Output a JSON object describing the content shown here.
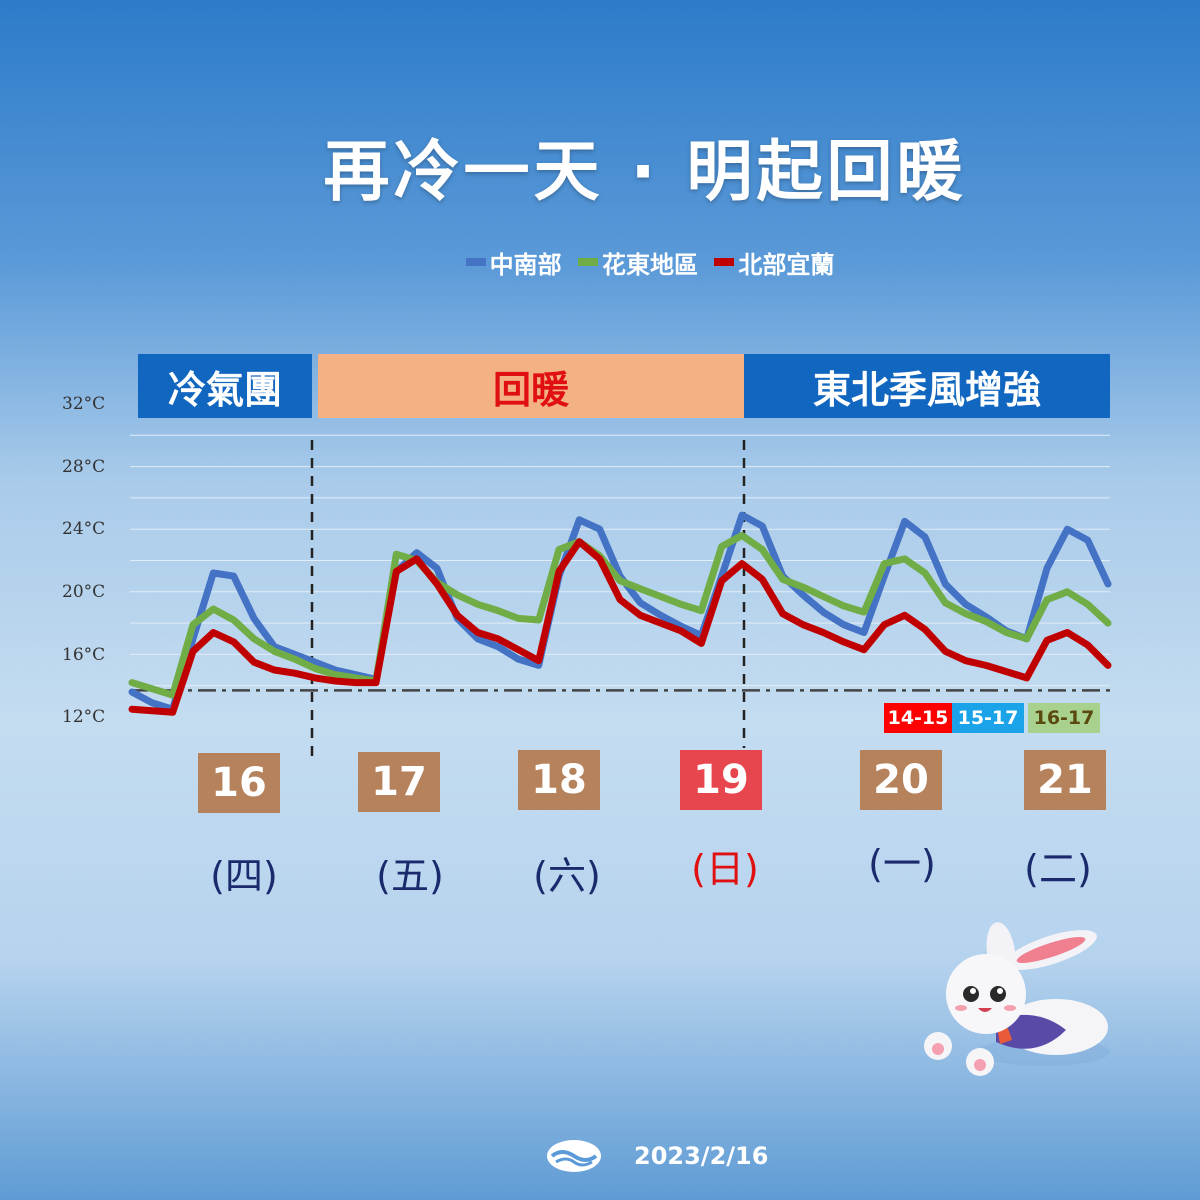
{
  "title": "再冷一天 · 明起回暖",
  "legend": [
    {
      "label": "中南部",
      "color": "#4472c4"
    },
    {
      "label": "花東地區",
      "color": "#70ad47"
    },
    {
      "label": "北部宜蘭",
      "color": "#c00000"
    }
  ],
  "banners": {
    "cold": "冷氣團",
    "warm": "回暖",
    "monsoon": "東北季風增強"
  },
  "days": [
    {
      "date": "16",
      "weekday": "(四)",
      "box_color": "#b5825c",
      "text_color": "#1a2a6c"
    },
    {
      "date": "17",
      "weekday": "(五)",
      "box_color": "#b5825c",
      "text_color": "#1a2a6c"
    },
    {
      "date": "18",
      "weekday": "(六)",
      "box_color": "#b5825c",
      "text_color": "#1a2a6c"
    },
    {
      "date": "19",
      "weekday": "(日)",
      "box_color": "#e8464f",
      "text_color": "#e01010"
    },
    {
      "date": "20",
      "weekday": "(一)",
      "box_color": "#b5825c",
      "text_color": "#1a2a6c"
    },
    {
      "date": "21",
      "weekday": "(二)",
      "box_color": "#b5825c",
      "text_color": "#1a2a6c"
    }
  ],
  "range_tags": [
    {
      "text": "14-15",
      "bg": "#ff0000",
      "color": "#ffffff"
    },
    {
      "text": "15-17",
      "bg": "#1aa3e8",
      "color": "#ffffff"
    },
    {
      "text": "16-17",
      "bg": "#a9d18e",
      "color": "#5a4a10"
    }
  ],
  "footer_date": "2023/2/16",
  "chart_data": {
    "type": "line",
    "yticks": [
      "12°C",
      "16°C",
      "20°C",
      "24°C",
      "28°C",
      "32°C"
    ],
    "ylim": [
      12,
      32
    ],
    "x": [
      0,
      0.25,
      0.5,
      0.75,
      1,
      1.25,
      1.5,
      1.75,
      2,
      2.25,
      2.5,
      2.75,
      3,
      3.25,
      3.5,
      3.75,
      4,
      4.25,
      4.5,
      4.75,
      5,
      5.25,
      5.5,
      5.75,
      6,
      6.25,
      6.5,
      6.75,
      7,
      7.25,
      7.5,
      7.75,
      8,
      8.25,
      8.5,
      8.75,
      9,
      9.25,
      9.5,
      9.75,
      10,
      10.25,
      10.5,
      10.75,
      11,
      11.25,
      11.5,
      11.75,
      12
    ],
    "series": [
      {
        "name": "中南部",
        "color": "#4472c4",
        "values": [
          13.6,
          12.9,
          12.5,
          17,
          21.2,
          21,
          18.3,
          16.5,
          16,
          15.5,
          15,
          14.7,
          14.4,
          21.3,
          22.5,
          21.5,
          18.3,
          17,
          16.5,
          15.7,
          15.3,
          21,
          24.6,
          24,
          21,
          19.3,
          18.5,
          17.8,
          17.2,
          21,
          24.9,
          24.2,
          21,
          19.8,
          18.7,
          17.9,
          17.4,
          21,
          24.5,
          23.5,
          20.5,
          19.2,
          18.4,
          17.5,
          17,
          21.5,
          24,
          23.3,
          20.5
        ]
      },
      {
        "name": "花東地區",
        "color": "#70ad47",
        "values": [
          14.2,
          13.8,
          13.4,
          17.9,
          18.9,
          18.2,
          17,
          16.2,
          15.7,
          15.1,
          14.7,
          14.5,
          14.3,
          22.4,
          22,
          20.6,
          19.8,
          19.2,
          18.8,
          18.3,
          18.2,
          22.7,
          23.2,
          22.3,
          20.7,
          20.2,
          19.7,
          19.2,
          18.8,
          22.9,
          23.6,
          22.7,
          20.8,
          20.3,
          19.7,
          19.1,
          18.7,
          21.8,
          22.1,
          21.2,
          19.3,
          18.6,
          18.1,
          17.4,
          17,
          19.5,
          20,
          19.2,
          18
        ]
      },
      {
        "name": "北部宜蘭",
        "color": "#c00000",
        "values": [
          12.5,
          12.4,
          12.3,
          16.2,
          17.4,
          16.8,
          15.5,
          15,
          14.8,
          14.5,
          14.3,
          14.2,
          14.2,
          21.3,
          22.1,
          20.5,
          18.5,
          17.4,
          17,
          16.3,
          15.6,
          21.3,
          23.2,
          22.1,
          19.5,
          18.5,
          18,
          17.5,
          16.7,
          20.7,
          21.8,
          20.8,
          18.6,
          17.9,
          17.4,
          16.8,
          16.3,
          17.9,
          18.5,
          17.6,
          16.2,
          15.6,
          15.3,
          14.9,
          14.5,
          16.9,
          17.4,
          16.6,
          15.3
        ]
      }
    ],
    "reference_line": 13.7,
    "dividers": [
      3,
      8.75
    ]
  }
}
